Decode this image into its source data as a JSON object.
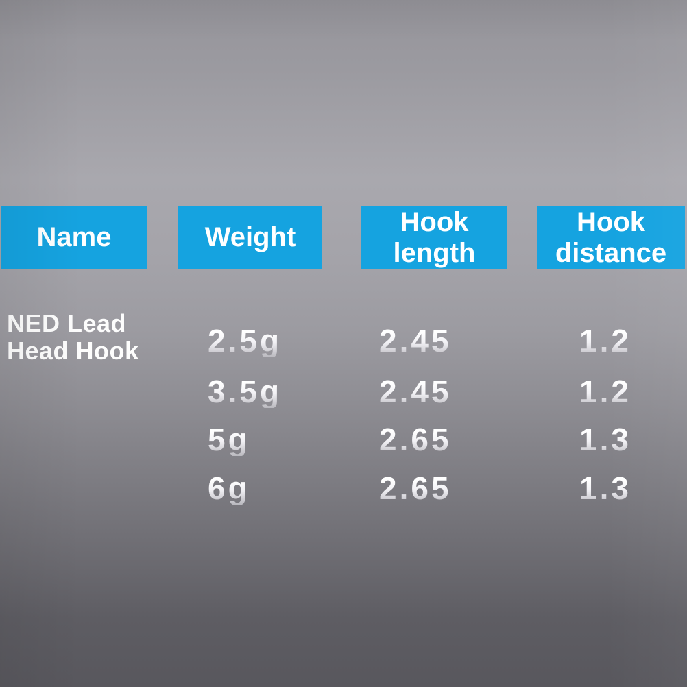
{
  "page": {
    "title": "NED Lead Head Hook specification table"
  },
  "colors": {
    "header_bg": "#15a3e0",
    "header_text": "#ffffff",
    "value_text": "#f2f1f5",
    "bg_top": "#96959b",
    "bg_light_band": "#a9a8ae",
    "bg_bottom": "#58575d"
  },
  "table": {
    "headers": [
      "Name",
      "Weight",
      "Hook length",
      "Hook distance"
    ],
    "product_name": "NED Lead Head Hook",
    "rows": [
      {
        "weight": "2.5g",
        "hook_length": "2.45",
        "hook_distance": "1.2"
      },
      {
        "weight": "3.5g",
        "hook_length": "2.45",
        "hook_distance": "1.2"
      },
      {
        "weight": "5g",
        "hook_length": "2.65",
        "hook_distance": "1.3"
      },
      {
        "weight": "6g",
        "hook_length": "2.65",
        "hook_distance": "1.3"
      }
    ]
  },
  "chart_data": {
    "type": "table",
    "title": "NED Lead Head Hook specifications",
    "columns": [
      "Name",
      "Weight",
      "Hook length",
      "Hook distance"
    ],
    "rows": [
      [
        "NED Lead Head Hook",
        "2.5g",
        "2.45",
        "1.2"
      ],
      [
        "NED Lead Head Hook",
        "3.5g",
        "2.45",
        "1.2"
      ],
      [
        "NED Lead Head Hook",
        "5g",
        "2.65",
        "1.3"
      ],
      [
        "NED Lead Head Hook",
        "6g",
        "2.65",
        "1.3"
      ]
    ]
  }
}
